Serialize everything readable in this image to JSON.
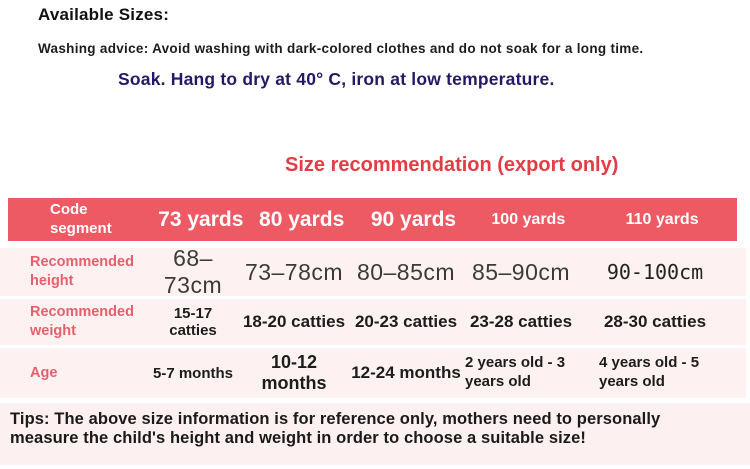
{
  "colors": {
    "header_bg": "#ee5a64",
    "section_title_red": "#e23c46",
    "row_label_pink": "#e75f6d",
    "row_bg": "#fdf2f1",
    "tips_bg": "#fcf0f1",
    "care_navy": "#221a66"
  },
  "top": {
    "heading": "Available Sizes:",
    "washing_advice": "Washing advice: Avoid washing with dark-colored clothes and do not soak for a long time.",
    "care_line": "Soak. Hang to dry at 40° C, iron at low temperature."
  },
  "section_title": "Size recommendation (export only)",
  "size_table": {
    "header_label": "Code segment",
    "columns": [
      "73 yards",
      "80 yards",
      "90 yards",
      "100 yards",
      "110 yards"
    ],
    "rows": [
      {
        "label": "Recommended height",
        "values": [
          "68–73cm",
          "73–78cm",
          "80–85cm",
          "85–90cm",
          "90-100cm"
        ]
      },
      {
        "label": "Recommended weight",
        "values": [
          "15-17 catties",
          "18-20 catties",
          "20-23 catties",
          "23-28 catties",
          "28-30 catties"
        ]
      },
      {
        "label": "Age",
        "values": [
          "5-7 months",
          "10-12 months",
          "12-24 months",
          "2 years old - 3 years old",
          "4 years old - 5 years old"
        ]
      }
    ]
  },
  "tips": "Tips: The above size information is for reference only, mothers need to personally measure the child's height and weight in order to choose a suitable size!"
}
